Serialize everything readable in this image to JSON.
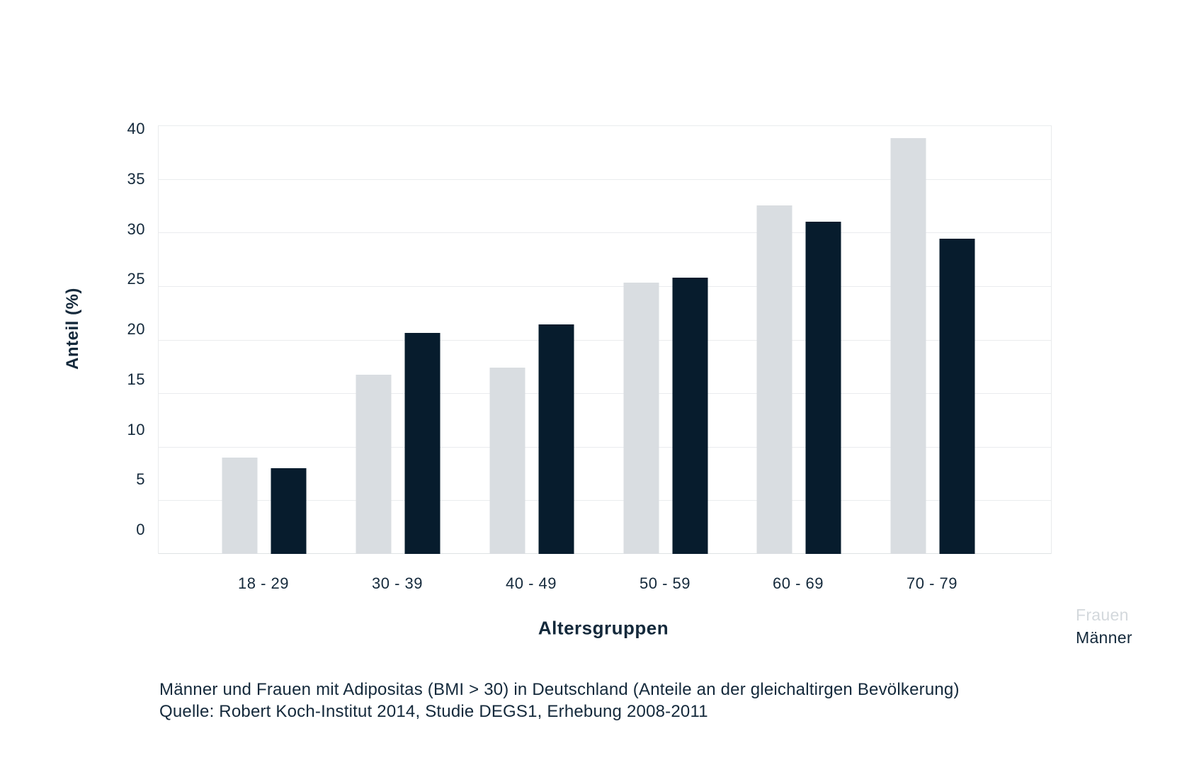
{
  "chart_data": {
    "type": "bar",
    "title": "",
    "categories": [
      "18 - 29",
      "30 - 39",
      "40 - 49",
      "50 - 59",
      "60 - 69",
      "70 - 79"
    ],
    "series": [
      {
        "name": "Frauen",
        "color": "#d9dde1",
        "values": [
          9.0,
          16.7,
          17.4,
          25.3,
          32.5,
          38.8
        ]
      },
      {
        "name": "Männer",
        "color": "#071c2d",
        "values": [
          8.0,
          20.6,
          21.4,
          25.8,
          31.0,
          29.4
        ]
      }
    ],
    "xlabel": "Altersgruppen",
    "ylabel": "Anteil (%)",
    "ylim": [
      0,
      40
    ],
    "yticks": [
      40,
      35,
      30,
      25,
      20,
      15,
      10,
      5,
      0
    ],
    "grid": true,
    "legend_position": "bottom-right"
  },
  "colors": {
    "frauen_bar": "#d9dde1",
    "maenner_bar": "#071c2d",
    "gridline": "#eaecee",
    "text": "#14293b",
    "legend_frauen_text": "#d3d8dc"
  },
  "caption": {
    "line1": "Männer und Frauen mit Adipositas (BMI > 30) in Deutschland (Anteile an der gleichaltirgen Bevölkerung)",
    "line2": "Quelle: Robert Koch-Institut 2014, Studie DEGS1, Erhebung 2008-2011"
  }
}
